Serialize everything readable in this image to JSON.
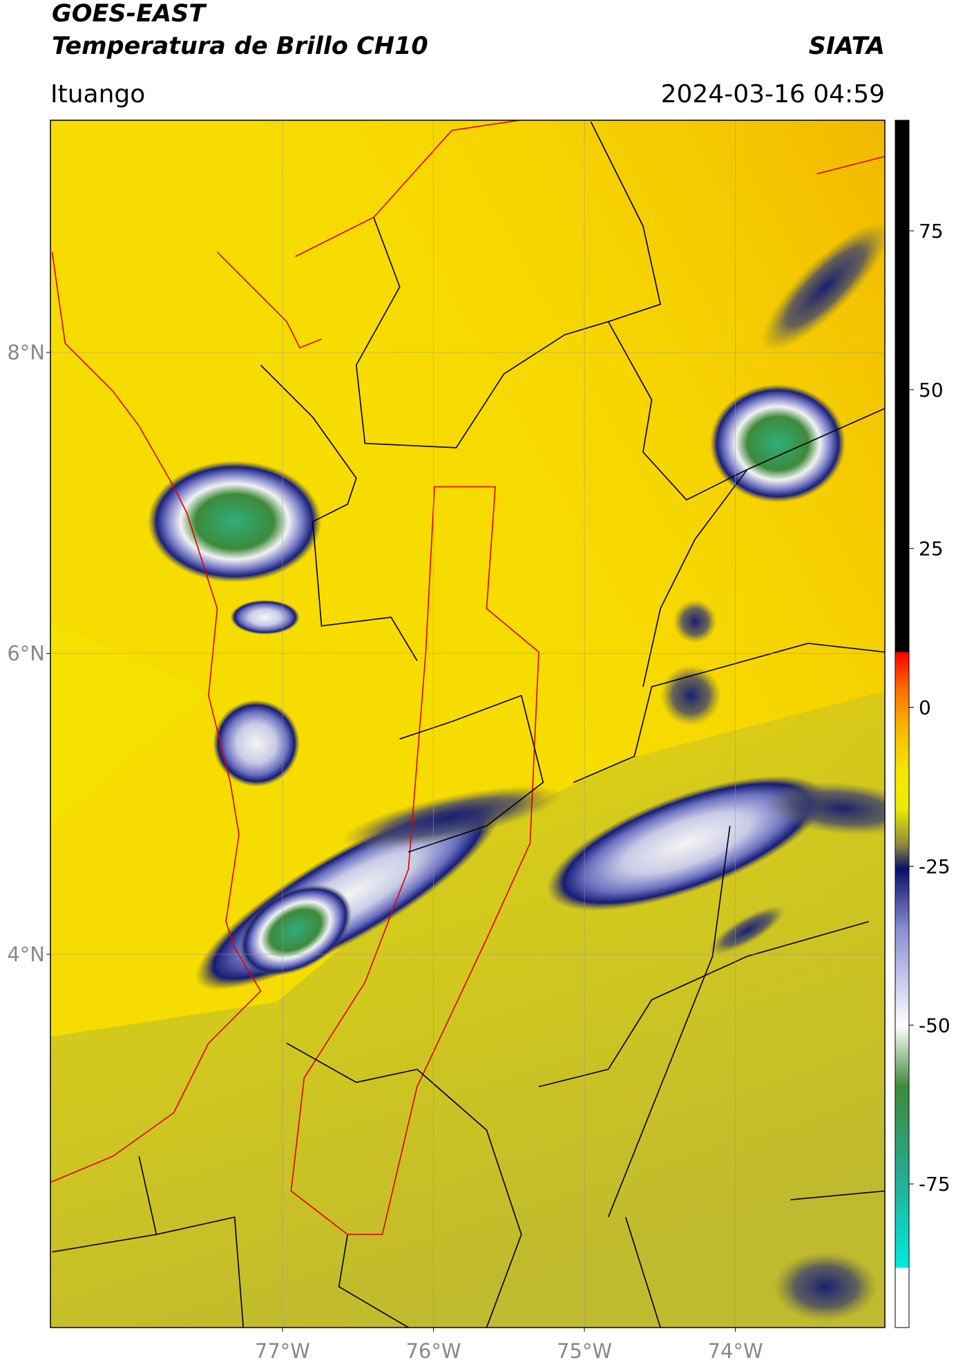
{
  "header": {
    "title": "GOES-EAST",
    "subtitle": "Temperatura de Brillo CH10",
    "source": "SIATA",
    "location": "Ituango",
    "timestamp": "2024-03-16 04:59"
  },
  "map": {
    "xlim": [
      -78.537,
      -73.01
    ],
    "ylim": [
      1.52,
      9.543
    ],
    "xticks": [
      {
        "value": -77,
        "label": "77°W"
      },
      {
        "value": -76,
        "label": "76°W"
      },
      {
        "value": -75,
        "label": "75°W"
      },
      {
        "value": -74,
        "label": "74°W"
      }
    ],
    "yticks": [
      {
        "value": 8,
        "label": "8°N"
      },
      {
        "value": 6,
        "label": "6°N"
      },
      {
        "value": 4,
        "label": "4°N"
      }
    ],
    "grid": true
  },
  "colorbar": {
    "lim": [
      -97.6,
      92.4
    ],
    "ticks": [
      75,
      50,
      25,
      0,
      -25,
      -50,
      -75
    ]
  }
}
